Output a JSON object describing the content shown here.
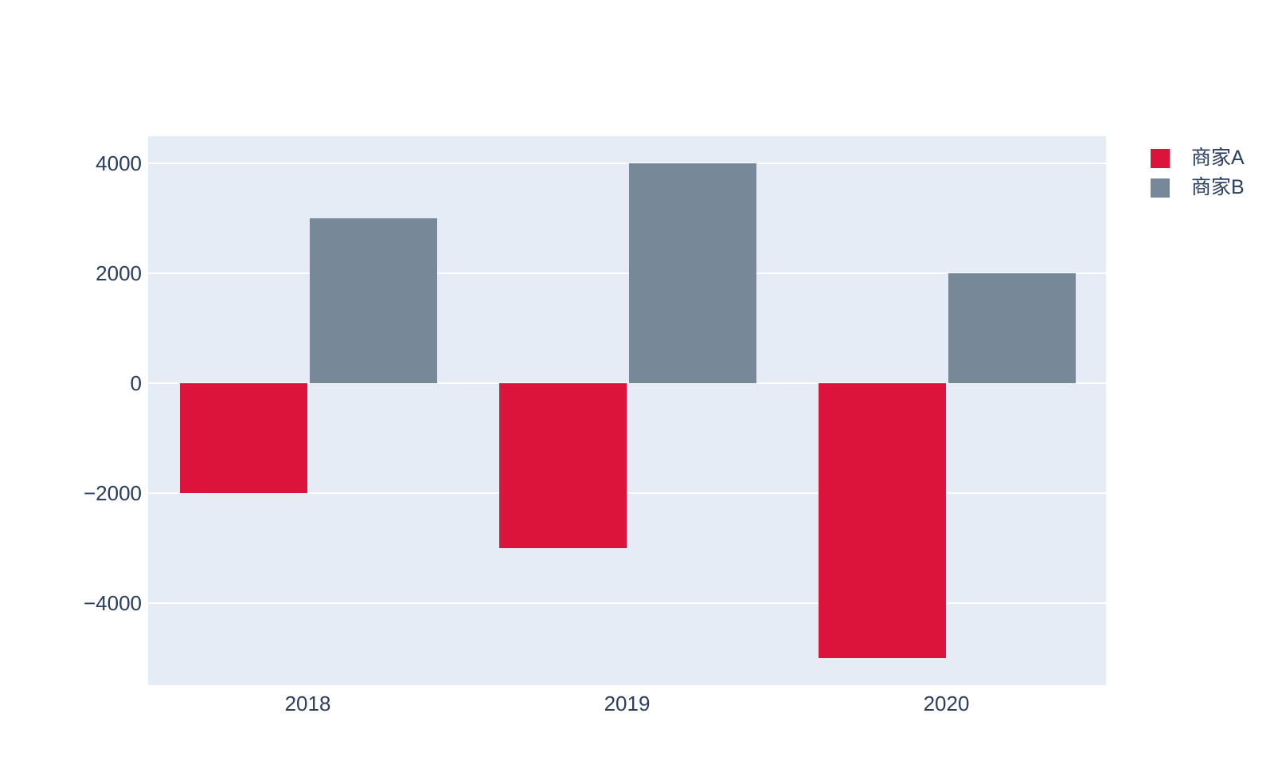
{
  "chart_data": {
    "type": "bar",
    "barmode": "group",
    "title": "",
    "xlabel": "",
    "ylabel": "",
    "categories": [
      "2018",
      "2019",
      "2020"
    ],
    "series": [
      {
        "name": "商家A",
        "color": "#DC143C",
        "values": [
          -2000,
          -3000,
          -5000
        ]
      },
      {
        "name": "商家B",
        "color": "#778899",
        "values": [
          3000,
          4000,
          2000
        ]
      }
    ],
    "ylim": [
      -5500,
      4500
    ],
    "yticks": [
      4000,
      2000,
      0,
      -2000,
      -4000
    ],
    "grid": true,
    "legend_position": "top-right",
    "colors": {
      "plot_background": "#E5ECF6",
      "gridline": "#FFFFFF",
      "text": "#2A3F5F",
      "page_background": "#FFFFFF"
    }
  }
}
